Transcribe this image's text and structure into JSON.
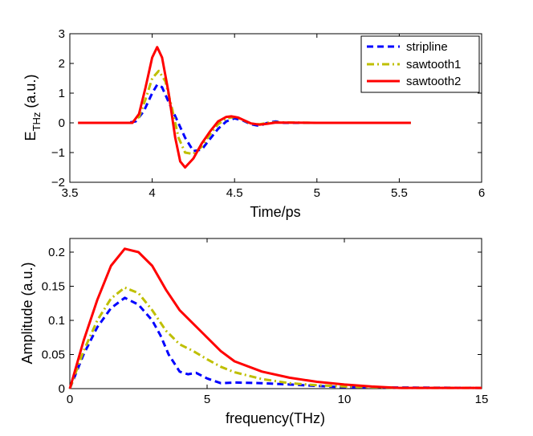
{
  "chart_data": [
    {
      "type": "line",
      "xlabel": "Time/ps",
      "ylabel": "E",
      "ylabel_sub": "THz",
      "ylabel_unit": " (a.u.)",
      "xlim": [
        3.5,
        6
      ],
      "ylim": [
        -2,
        3
      ],
      "xticks": [
        3.5,
        4,
        4.5,
        5,
        5.5,
        6
      ],
      "xtick_labels": [
        "3.5",
        "4",
        "4.5",
        "5",
        "5.5",
        "6"
      ],
      "yticks": [
        -2,
        -1,
        0,
        1,
        2,
        3
      ],
      "ytick_labels": [
        "−2",
        "−1",
        "0",
        "1",
        "2",
        "3"
      ],
      "grid": false,
      "legend_position": "top-right",
      "series": [
        {
          "name": "stripline",
          "color": "#0000ff",
          "style": "dashed",
          "x": [
            3.55,
            3.85,
            3.9,
            3.95,
            4.0,
            4.03,
            4.06,
            4.1,
            4.15,
            4.2,
            4.25,
            4.3,
            4.35,
            4.4,
            4.45,
            4.5,
            4.55,
            4.6,
            4.65,
            4.7,
            4.75,
            4.8,
            5.0,
            5.5,
            5.57
          ],
          "y": [
            0,
            0,
            0.05,
            0.4,
            1.0,
            1.28,
            1.2,
            0.7,
            0.1,
            -0.5,
            -0.95,
            -0.9,
            -0.55,
            -0.2,
            0.05,
            0.15,
            0.08,
            -0.05,
            -0.1,
            0,
            0.05,
            0,
            0,
            0,
            0
          ]
        },
        {
          "name": "sawtooth1",
          "color": "#bfbf00",
          "style": "dashdot",
          "x": [
            3.55,
            3.87,
            3.92,
            3.96,
            4.0,
            4.04,
            4.08,
            4.12,
            4.16,
            4.2,
            4.25,
            4.3,
            4.35,
            4.4,
            4.45,
            4.5,
            4.55,
            4.6,
            4.65,
            4.7,
            4.75,
            5.0,
            5.5,
            5.57
          ],
          "y": [
            0,
            0,
            0.2,
            0.8,
            1.5,
            1.75,
            1.4,
            0.5,
            -0.5,
            -1.0,
            -1.05,
            -0.8,
            -0.4,
            -0.05,
            0.15,
            0.2,
            0.1,
            -0.03,
            -0.05,
            0,
            0.02,
            0,
            0,
            0
          ]
        },
        {
          "name": "sawtooth2",
          "color": "#ff0000",
          "style": "solid",
          "x": [
            3.55,
            3.88,
            3.92,
            3.96,
            4.0,
            4.03,
            4.06,
            4.1,
            4.14,
            4.17,
            4.2,
            4.25,
            4.3,
            4.35,
            4.4,
            4.45,
            4.48,
            4.52,
            4.56,
            4.6,
            4.65,
            4.7,
            4.75,
            5.0,
            5.5,
            5.57
          ],
          "y": [
            0,
            0,
            0.3,
            1.2,
            2.2,
            2.55,
            2.2,
            1.0,
            -0.5,
            -1.3,
            -1.5,
            -1.2,
            -0.7,
            -0.3,
            0.05,
            0.2,
            0.22,
            0.18,
            0.08,
            -0.02,
            -0.06,
            -0.03,
            0.01,
            0,
            0,
            0
          ]
        }
      ]
    },
    {
      "type": "line",
      "xlabel": "frequency(THz)",
      "ylabel": "Amplitude (a.u.)",
      "xlim": [
        0,
        15
      ],
      "ylim": [
        0,
        0.22
      ],
      "xticks": [
        0,
        5,
        10,
        15
      ],
      "xtick_labels": [
        "0",
        "5",
        "10",
        "15"
      ],
      "yticks": [
        0,
        0.05,
        0.1,
        0.15,
        0.2
      ],
      "ytick_labels": [
        "0",
        "0.05",
        "0.1",
        "0.15",
        "0.2"
      ],
      "grid": false,
      "series": [
        {
          "name": "stripline",
          "color": "#0000ff",
          "style": "dashed",
          "x": [
            0,
            0.5,
            1.0,
            1.5,
            2.0,
            2.5,
            3.0,
            3.3,
            3.6,
            4.0,
            4.3,
            4.6,
            5.0,
            5.5,
            6.0,
            7.0,
            8.0,
            9.0,
            10.0,
            15.0
          ],
          "y": [
            0,
            0.05,
            0.09,
            0.118,
            0.133,
            0.123,
            0.1,
            0.078,
            0.05,
            0.025,
            0.021,
            0.023,
            0.015,
            0.008,
            0.009,
            0.008,
            0.006,
            0.004,
            0.002,
            0.001
          ]
        },
        {
          "name": "sawtooth1",
          "color": "#bfbf00",
          "style": "dashdot",
          "x": [
            0,
            0.5,
            1.0,
            1.5,
            2.0,
            2.5,
            3.0,
            3.5,
            4.0,
            4.5,
            5.0,
            5.5,
            6.0,
            7.0,
            8.0,
            9.0,
            10.0,
            12.0,
            15.0
          ],
          "y": [
            0,
            0.055,
            0.1,
            0.132,
            0.148,
            0.14,
            0.115,
            0.085,
            0.065,
            0.055,
            0.043,
            0.032,
            0.024,
            0.014,
            0.008,
            0.005,
            0.003,
            0.001,
            0.001
          ]
        },
        {
          "name": "sawtooth2",
          "color": "#ff0000",
          "style": "solid",
          "x": [
            0,
            0.5,
            1.0,
            1.5,
            2.0,
            2.5,
            3.0,
            3.5,
            4.0,
            4.5,
            5.0,
            5.5,
            6.0,
            7.0,
            8.0,
            9.0,
            10.0,
            11.0,
            12.0,
            15.0
          ],
          "y": [
            0,
            0.07,
            0.13,
            0.18,
            0.205,
            0.2,
            0.18,
            0.145,
            0.115,
            0.095,
            0.075,
            0.055,
            0.04,
            0.025,
            0.016,
            0.01,
            0.006,
            0.003,
            0.001,
            0.001
          ]
        }
      ]
    }
  ]
}
